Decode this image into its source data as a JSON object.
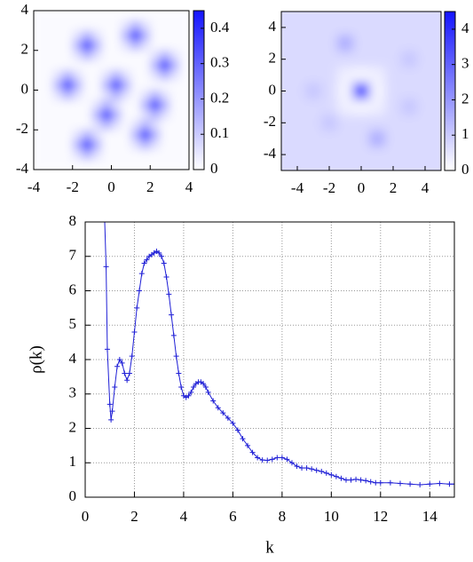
{
  "chart_data": [
    {
      "type": "heatmap",
      "colormap": [
        "#ffffff",
        "#1414ff"
      ],
      "x": [
        -3.75,
        -3.25,
        -2.75,
        -2.25,
        -1.75,
        -1.25,
        -0.75,
        -0.25,
        0.25,
        0.75,
        1.25,
        1.75,
        2.25,
        2.75,
        3.25,
        3.75
      ],
      "y": [
        3.75,
        3.25,
        2.75,
        2.25,
        1.75,
        1.25,
        0.75,
        0.25,
        -0.25,
        -0.75,
        -1.25,
        -1.75,
        -2.25,
        -2.75,
        -3.25,
        -3.75
      ],
      "z": [
        [
          0.01,
          0.01,
          0.01,
          0.01,
          0.01,
          0.01,
          0.01,
          0.01,
          0.01,
          0.01,
          0.01,
          0.01,
          0.01,
          0.01,
          0.01,
          0.01
        ],
        [
          0.01,
          0.01,
          0.01,
          0.01,
          0.01,
          0.01,
          0.01,
          0.01,
          0.01,
          0.06,
          0.15,
          0.06,
          0.01,
          0.01,
          0.01,
          0.01
        ],
        [
          0.01,
          0.01,
          0.01,
          0.01,
          0.06,
          0.15,
          0.06,
          0.01,
          0.01,
          0.15,
          0.42,
          0.15,
          0.01,
          0.01,
          0.01,
          0.01
        ],
        [
          0.01,
          0.01,
          0.01,
          0.01,
          0.15,
          0.42,
          0.15,
          0.01,
          0.01,
          0.06,
          0.15,
          0.06,
          0.01,
          0.01,
          0.01,
          0.01
        ],
        [
          0.01,
          0.01,
          0.01,
          0.01,
          0.06,
          0.15,
          0.06,
          0.01,
          0.01,
          0.01,
          0.01,
          0.01,
          0.06,
          0.15,
          0.06,
          0.01
        ],
        [
          0.01,
          0.01,
          0.01,
          0.01,
          0.01,
          0.01,
          0.01,
          0.01,
          0.01,
          0.01,
          0.01,
          0.01,
          0.15,
          0.42,
          0.15,
          0.01
        ],
        [
          0.01,
          0.01,
          0.06,
          0.15,
          0.06,
          0.01,
          0.01,
          0.06,
          0.15,
          0.06,
          0.01,
          0.01,
          0.06,
          0.15,
          0.06,
          0.01
        ],
        [
          0.01,
          0.01,
          0.15,
          0.42,
          0.15,
          0.01,
          0.01,
          0.15,
          0.42,
          0.15,
          0.01,
          0.01,
          0.01,
          0.01,
          0.01,
          0.01
        ],
        [
          0.01,
          0.01,
          0.06,
          0.15,
          0.06,
          0.01,
          0.01,
          0.06,
          0.15,
          0.06,
          0.01,
          0.06,
          0.15,
          0.06,
          0.01,
          0.01
        ],
        [
          0.01,
          0.01,
          0.01,
          0.01,
          0.01,
          0.01,
          0.06,
          0.15,
          0.06,
          0.01,
          0.01,
          0.15,
          0.42,
          0.15,
          0.01,
          0.01
        ],
        [
          0.01,
          0.01,
          0.01,
          0.01,
          0.01,
          0.01,
          0.15,
          0.42,
          0.15,
          0.01,
          0.01,
          0.06,
          0.15,
          0.06,
          0.01,
          0.01
        ],
        [
          0.01,
          0.01,
          0.01,
          0.01,
          0.01,
          0.01,
          0.06,
          0.15,
          0.06,
          0.01,
          0.06,
          0.15,
          0.06,
          0.01,
          0.01,
          0.01
        ],
        [
          0.01,
          0.01,
          0.01,
          0.01,
          0.06,
          0.15,
          0.06,
          0.01,
          0.01,
          0.01,
          0.15,
          0.42,
          0.15,
          0.01,
          0.01,
          0.01
        ],
        [
          0.01,
          0.01,
          0.01,
          0.01,
          0.15,
          0.42,
          0.15,
          0.01,
          0.01,
          0.01,
          0.06,
          0.15,
          0.06,
          0.01,
          0.01,
          0.01
        ],
        [
          0.01,
          0.01,
          0.01,
          0.01,
          0.06,
          0.15,
          0.06,
          0.01,
          0.01,
          0.01,
          0.01,
          0.01,
          0.01,
          0.01,
          0.01,
          0.01
        ],
        [
          0.01,
          0.01,
          0.01,
          0.01,
          0.01,
          0.01,
          0.01,
          0.01,
          0.01,
          0.01,
          0.01,
          0.01,
          0.01,
          0.01,
          0.01,
          0.01
        ]
      ],
      "xlim": [
        -4,
        4
      ],
      "xticks": [
        -4,
        -2,
        0,
        2,
        4
      ],
      "ylim": [
        -4,
        4
      ],
      "yticks": [
        -4,
        -2,
        0,
        2,
        4
      ],
      "zlim": [
        0,
        0.45
      ],
      "zticks": [
        0,
        0.1,
        0.2,
        0.3,
        0.4
      ]
    },
    {
      "type": "heatmap",
      "colormap": [
        "#ffffff",
        "#1414ff"
      ],
      "x": [
        -5,
        -4,
        -3,
        -2,
        -1,
        0,
        1,
        2,
        3,
        4,
        5
      ],
      "y": [
        5,
        4,
        3,
        2,
        1,
        0,
        -1,
        -2,
        -3,
        -4,
        -5
      ],
      "z": [
        [
          0.7,
          0.7,
          0.7,
          0.7,
          0.7,
          0.7,
          0.7,
          0.7,
          0.7,
          0.7,
          0.7
        ],
        [
          0.7,
          0.7,
          0.7,
          0.7,
          0.7,
          0.7,
          0.7,
          0.7,
          0.7,
          0.7,
          0.7
        ],
        [
          0.7,
          0.7,
          0.7,
          0.7,
          1.6,
          0.7,
          0.7,
          0.7,
          0.7,
          0.7,
          0.7
        ],
        [
          0.7,
          0.7,
          0.7,
          0.7,
          0.7,
          0.7,
          0.7,
          0.7,
          1.1,
          0.7,
          0.7
        ],
        [
          0.7,
          0.7,
          0.7,
          0.7,
          0.3,
          0.2,
          0.3,
          0.7,
          0.7,
          0.7,
          0.7
        ],
        [
          0.7,
          0.7,
          1.1,
          0.7,
          0.2,
          4.2,
          0.2,
          0.7,
          0.7,
          0.7,
          0.7
        ],
        [
          0.7,
          0.7,
          0.7,
          0.7,
          0.3,
          0.2,
          0.3,
          0.7,
          1.1,
          0.7,
          0.7
        ],
        [
          0.7,
          0.7,
          0.7,
          1.1,
          0.7,
          0.7,
          0.7,
          0.7,
          0.7,
          0.7,
          0.7
        ],
        [
          0.7,
          0.7,
          0.7,
          0.7,
          0.7,
          0.7,
          1.6,
          0.7,
          0.7,
          0.7,
          0.7
        ],
        [
          0.7,
          0.7,
          0.7,
          0.7,
          0.7,
          0.7,
          0.7,
          0.7,
          0.7,
          0.7,
          0.7
        ],
        [
          0.7,
          0.7,
          0.7,
          0.7,
          0.7,
          0.7,
          0.7,
          0.7,
          0.7,
          0.7,
          0.7
        ]
      ],
      "xlim": [
        -5,
        5
      ],
      "xticks": [
        -4,
        -2,
        0,
        2,
        4
      ],
      "ylim": [
        -5,
        5
      ],
      "yticks": [
        -4,
        -2,
        0,
        2,
        4
      ],
      "zlim": [
        0,
        4.5
      ],
      "zticks": [
        0,
        1,
        2,
        3,
        4
      ]
    },
    {
      "type": "line",
      "xlabel": "k",
      "ylabel": "ρ(k)",
      "color": "#1f1fd6",
      "marker": "+",
      "grid": true,
      "x": [
        0.75,
        0.85,
        0.9,
        1.0,
        1.05,
        1.1,
        1.2,
        1.3,
        1.4,
        1.5,
        1.6,
        1.7,
        1.8,
        1.9,
        2.0,
        2.1,
        2.2,
        2.3,
        2.4,
        2.5,
        2.6,
        2.7,
        2.8,
        2.9,
        3.0,
        3.1,
        3.2,
        3.3,
        3.4,
        3.5,
        3.6,
        3.7,
        3.8,
        3.9,
        4.0,
        4.1,
        4.2,
        4.3,
        4.4,
        4.5,
        4.6,
        4.7,
        4.8,
        4.9,
        5.0,
        5.2,
        5.4,
        5.6,
        5.8,
        6.0,
        6.2,
        6.4,
        6.6,
        6.8,
        7.0,
        7.2,
        7.4,
        7.6,
        7.8,
        8.0,
        8.2,
        8.4,
        8.6,
        8.8,
        9.0,
        9.2,
        9.4,
        9.6,
        9.8,
        10.0,
        10.2,
        10.4,
        10.6,
        10.8,
        11.0,
        11.2,
        11.4,
        11.6,
        11.8,
        12.0,
        12.4,
        12.8,
        13.2,
        13.6,
        14.0,
        14.4,
        14.8,
        15.0
      ],
      "values": [
        9.0,
        6.7,
        4.3,
        2.7,
        2.25,
        2.5,
        3.2,
        3.8,
        4.0,
        3.9,
        3.6,
        3.4,
        3.6,
        4.1,
        4.8,
        5.5,
        6.0,
        6.5,
        6.8,
        6.9,
        7.0,
        7.05,
        7.1,
        7.15,
        7.1,
        7.0,
        6.8,
        6.4,
        5.9,
        5.3,
        4.7,
        4.1,
        3.6,
        3.2,
        2.95,
        2.9,
        2.95,
        3.05,
        3.2,
        3.3,
        3.35,
        3.35,
        3.3,
        3.2,
        3.05,
        2.8,
        2.6,
        2.45,
        2.3,
        2.15,
        1.95,
        1.7,
        1.5,
        1.3,
        1.15,
        1.08,
        1.07,
        1.1,
        1.15,
        1.15,
        1.1,
        1.0,
        0.9,
        0.85,
        0.85,
        0.82,
        0.78,
        0.75,
        0.7,
        0.65,
        0.6,
        0.55,
        0.5,
        0.5,
        0.52,
        0.5,
        0.48,
        0.45,
        0.42,
        0.42,
        0.42,
        0.4,
        0.38,
        0.36,
        0.38,
        0.4,
        0.38,
        0.38
      ],
      "xlim": [
        0,
        15
      ],
      "xticks": [
        0,
        2,
        4,
        6,
        8,
        10,
        12,
        14
      ],
      "ylim": [
        0,
        8
      ],
      "yticks": [
        0,
        1,
        2,
        3,
        4,
        5,
        6,
        7,
        8
      ]
    }
  ]
}
